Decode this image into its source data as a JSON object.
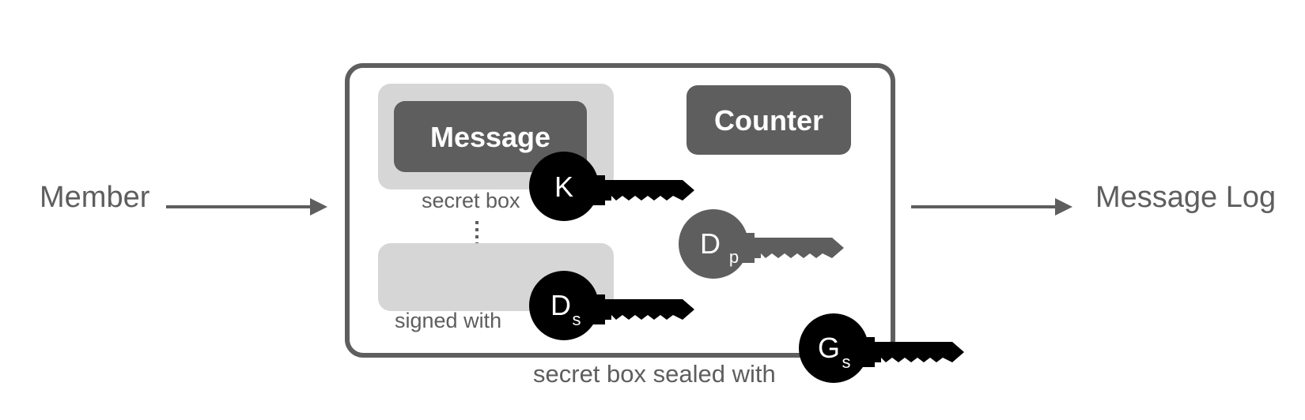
{
  "source_label": "Member",
  "target_label": "Message Log",
  "message_label": "Message",
  "counter_label": "Counter",
  "secret_box_label": "secret box",
  "signed_with_label": "signed with",
  "sealed_label": "secret box sealed with",
  "keys": {
    "k": {
      "letter": "K",
      "sub": ""
    },
    "ds": {
      "letter": "D",
      "sub": "s"
    },
    "dp": {
      "letter": "D",
      "sub": "p"
    },
    "gs": {
      "letter": "G",
      "sub": "s"
    }
  },
  "colors": {
    "text": "#5e5e5e",
    "dark_box": "#5e5e5e",
    "light_box": "#d6d6d6",
    "private_key": "#000000",
    "public_key": "#5e5e5e"
  }
}
